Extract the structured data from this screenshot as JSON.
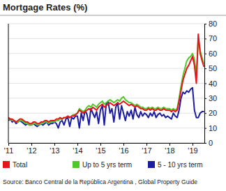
{
  "chart_data": {
    "type": "line",
    "title": "Mortgage Rates (%)",
    "source": "Source: Banco Central de la República Argentina , Global Property Guide",
    "categories": [
      "'11",
      null,
      null,
      null,
      null,
      null,
      null,
      null,
      null,
      null,
      null,
      null,
      "'12",
      null,
      null,
      null,
      null,
      null,
      null,
      null,
      null,
      null,
      null,
      null,
      "'13",
      null,
      null,
      null,
      null,
      null,
      null,
      null,
      null,
      null,
      null,
      null,
      "'14",
      null,
      null,
      null,
      null,
      null,
      null,
      null,
      null,
      null,
      null,
      null,
      "'15",
      null,
      null,
      null,
      null,
      null,
      null,
      null,
      null,
      null,
      null,
      null,
      "'16",
      null,
      null,
      null,
      null,
      null,
      null,
      null,
      null,
      null,
      null,
      null,
      "'17",
      null,
      null,
      null,
      null,
      null,
      null,
      null,
      null,
      null,
      null,
      null,
      "'18",
      null,
      null,
      null,
      null,
      null,
      null,
      null,
      null,
      null,
      null,
      null,
      "'19",
      null,
      null,
      null,
      null,
      null,
      null
    ],
    "series": [
      {
        "name": "Total",
        "color": "#e8141a",
        "values": [
          17,
          16,
          16,
          15,
          14,
          15,
          16,
          16,
          15,
          14,
          14,
          13,
          13,
          14,
          14,
          13,
          13,
          14,
          14,
          15,
          15,
          14,
          15,
          15,
          15,
          16,
          16,
          17,
          16,
          17,
          17,
          18,
          17,
          18,
          18,
          19,
          20,
          22,
          21,
          20,
          21,
          22,
          23,
          22,
          24,
          23,
          22,
          24,
          25,
          26,
          24,
          25,
          26,
          27,
          26,
          25,
          26,
          27,
          26,
          27,
          28,
          27,
          26,
          25,
          26,
          25,
          24,
          25,
          24,
          23,
          23,
          22,
          22,
          23,
          22,
          23,
          22,
          22,
          23,
          22,
          22,
          23,
          22,
          22,
          22,
          21,
          22,
          21,
          22,
          28,
          35,
          42,
          46,
          50,
          52,
          55,
          58,
          52,
          40,
          73,
          60,
          55,
          51
        ]
      },
      {
        "name": "Up to 5 yrs term",
        "color": "#4fc928",
        "values": [
          16,
          16,
          15,
          15,
          14,
          14,
          15,
          15,
          14,
          13,
          13,
          12,
          12,
          13,
          13,
          12,
          12,
          13,
          13,
          14,
          14,
          13,
          14,
          14,
          14,
          15,
          15,
          16,
          16,
          17,
          17,
          18,
          17,
          18,
          19,
          19,
          20,
          23,
          22,
          21,
          22,
          24,
          25,
          24,
          26,
          25,
          24,
          26,
          27,
          28,
          26,
          27,
          28,
          29,
          28,
          27,
          28,
          29,
          28,
          30,
          31,
          29,
          28,
          27,
          27,
          26,
          25,
          26,
          25,
          24,
          24,
          23,
          23,
          24,
          23,
          24,
          23,
          23,
          24,
          23,
          23,
          24,
          23,
          23,
          23,
          22,
          23,
          22,
          23,
          30,
          38,
          45,
          50,
          55,
          57,
          58,
          60,
          56,
          45,
          70,
          62,
          57,
          53
        ]
      },
      {
        "name": "5 - 10 yrs term",
        "color": "#1c1ca0",
        "values": [
          15,
          16,
          14,
          15,
          13,
          14,
          15,
          14,
          13,
          12,
          13,
          12,
          12,
          13,
          12,
          11,
          12,
          13,
          12,
          13,
          14,
          12,
          13,
          13,
          14,
          13,
          10,
          14,
          15,
          12,
          16,
          17,
          11,
          17,
          16,
          18,
          18,
          10,
          20,
          15,
          22,
          19,
          12,
          23,
          20,
          17,
          21,
          13,
          22,
          25,
          12,
          26,
          28,
          20,
          23,
          14,
          24,
          27,
          16,
          25,
          20,
          15,
          21,
          18,
          22,
          16,
          24,
          19,
          17,
          21,
          18,
          20,
          19,
          17,
          20,
          18,
          21,
          17,
          19,
          20,
          18,
          19,
          17,
          18,
          17,
          16,
          20,
          18,
          17,
          22,
          30,
          34,
          33,
          35,
          34,
          36,
          37,
          22,
          17,
          17,
          20,
          21,
          21
        ]
      }
    ],
    "ylim": [
      0,
      80
    ],
    "yticks": [
      0,
      10,
      20,
      30,
      40,
      50,
      60,
      70,
      80
    ],
    "grid": true,
    "legend": "bottom"
  }
}
